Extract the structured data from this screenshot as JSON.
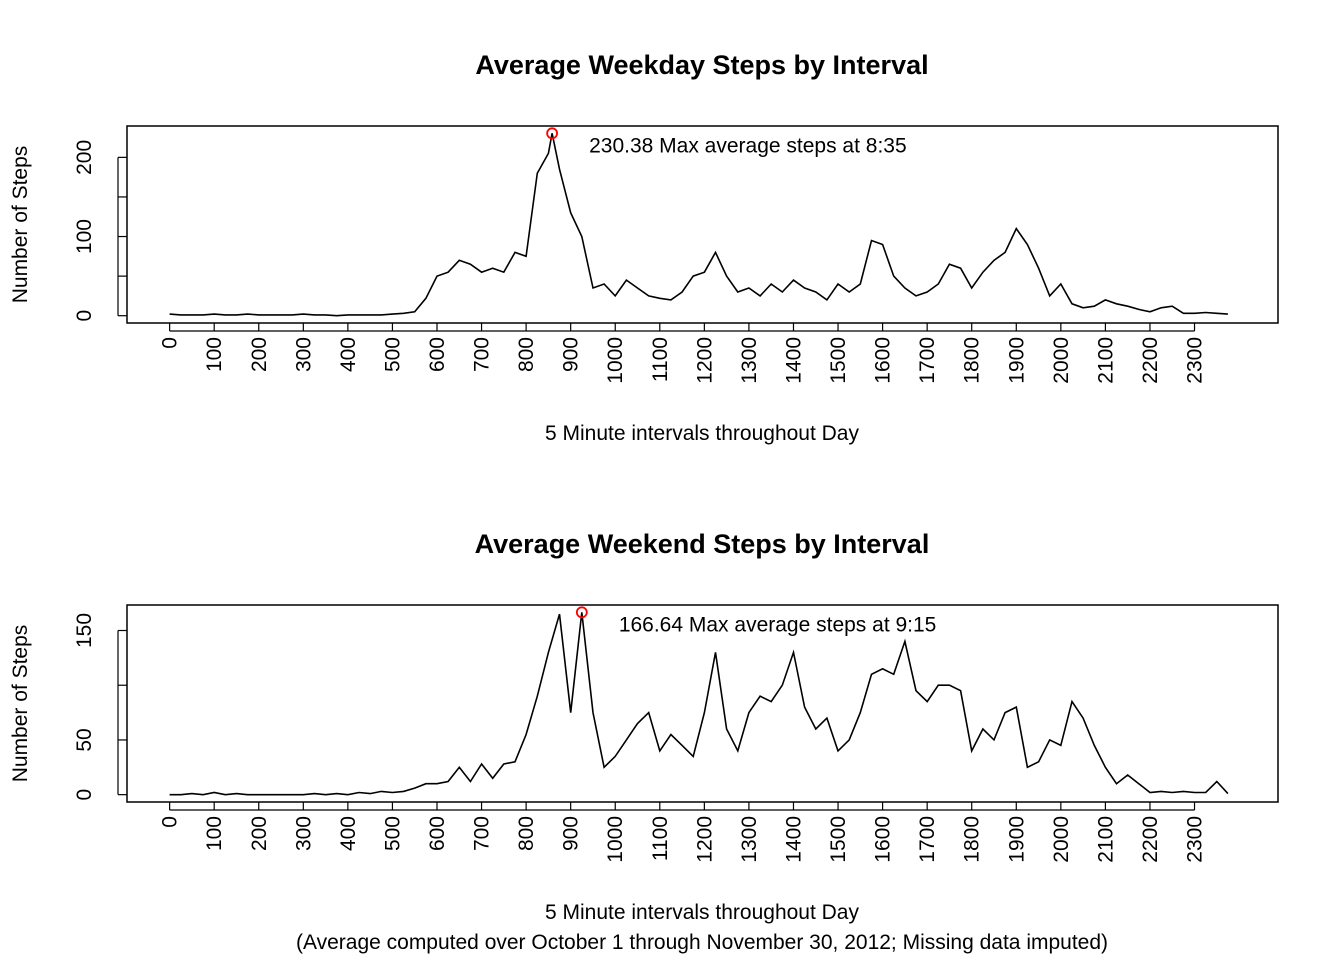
{
  "chart_data": [
    {
      "type": "line",
      "title": "Average Weekday Steps by Interval",
      "xlabel": "5 Minute intervals throughout Day",
      "ylabel": "Number of Steps",
      "color": "#000000",
      "x": [
        0,
        3,
        6,
        9,
        12,
        15,
        18,
        21,
        24,
        27,
        30,
        33,
        36,
        39,
        42,
        45,
        48,
        51,
        54,
        57,
        60,
        63,
        66,
        69,
        72,
        75,
        78,
        81,
        84,
        87,
        90,
        93,
        96,
        99,
        102,
        103,
        105,
        108,
        111,
        114,
        117,
        120,
        123,
        126,
        129,
        132,
        135,
        138,
        141,
        144,
        147,
        150,
        153,
        156,
        159,
        162,
        165,
        168,
        171,
        174,
        177,
        180,
        183,
        186,
        189,
        192,
        195,
        198,
        201,
        204,
        207,
        210,
        213,
        216,
        219,
        222,
        225,
        228,
        231,
        234,
        237,
        240,
        243,
        246,
        249,
        252,
        255,
        258,
        261,
        264,
        267,
        270,
        273,
        276,
        279,
        282,
        285
      ],
      "values": [
        2,
        1,
        1,
        1,
        2,
        1,
        1,
        2,
        1,
        1,
        1,
        1,
        2,
        1,
        1,
        0,
        1,
        1,
        1,
        1,
        2,
        3,
        5,
        22,
        50,
        55,
        70,
        65,
        55,
        60,
        55,
        80,
        75,
        180,
        205,
        230.38,
        185,
        130,
        100,
        35,
        40,
        25,
        45,
        35,
        25,
        22,
        20,
        30,
        50,
        55,
        80,
        50,
        30,
        35,
        25,
        40,
        30,
        45,
        35,
        30,
        20,
        40,
        30,
        40,
        95,
        90,
        50,
        35,
        25,
        30,
        40,
        65,
        60,
        35,
        55,
        70,
        80,
        110,
        90,
        60,
        25,
        40,
        15,
        10,
        12,
        20,
        15,
        12,
        8,
        5,
        10,
        12,
        3,
        3,
        4,
        3,
        2
      ],
      "max": {
        "x": 103,
        "value": 230.38,
        "label": "230.38 Max average steps at 8:35",
        "color": "#ff0000"
      },
      "xlim": [
        -11.48,
        298.48
      ],
      "xticks": [
        {
          "value": 0,
          "label": "0"
        },
        {
          "value": 12,
          "label": "100"
        },
        {
          "value": 24,
          "label": "200"
        },
        {
          "value": 36,
          "label": "300"
        },
        {
          "value": 48,
          "label": "400"
        },
        {
          "value": 60,
          "label": "500"
        },
        {
          "value": 72,
          "label": "600"
        },
        {
          "value": 84,
          "label": "700"
        },
        {
          "value": 96,
          "label": "800"
        },
        {
          "value": 108,
          "label": "900"
        },
        {
          "value": 120,
          "label": "1000"
        },
        {
          "value": 132,
          "label": "1100"
        },
        {
          "value": 144,
          "label": "1200"
        },
        {
          "value": 156,
          "label": "1300"
        },
        {
          "value": 168,
          "label": "1400"
        },
        {
          "value": 180,
          "label": "1500"
        },
        {
          "value": 192,
          "label": "1600"
        },
        {
          "value": 204,
          "label": "1700"
        },
        {
          "value": 216,
          "label": "1800"
        },
        {
          "value": 228,
          "label": "1900"
        },
        {
          "value": 240,
          "label": "2000"
        },
        {
          "value": 252,
          "label": "2100"
        },
        {
          "value": 264,
          "label": "2200"
        },
        {
          "value": 276,
          "label": "2300"
        }
      ],
      "xtick_color": "#0000ff",
      "ylim": [
        -9.2,
        239.6
      ],
      "yticks": [
        0,
        100,
        200
      ],
      "yminorticks": [
        50,
        150
      ]
    },
    {
      "type": "line",
      "title": "Average Weekend Steps by Interval",
      "xlabel": "5 Minute intervals throughout Day",
      "ylabel": "Number of Steps",
      "note": "(Average computed over October 1 through November 30, 2012; Missing data imputed)",
      "color": "#000000",
      "x": [
        0,
        3,
        6,
        9,
        12,
        15,
        18,
        21,
        24,
        27,
        30,
        33,
        36,
        39,
        42,
        45,
        48,
        51,
        54,
        57,
        60,
        63,
        66,
        69,
        72,
        75,
        78,
        81,
        84,
        87,
        90,
        93,
        96,
        99,
        102,
        105,
        108,
        111,
        114,
        117,
        120,
        123,
        126,
        129,
        132,
        135,
        138,
        141,
        144,
        147,
        150,
        153,
        156,
        159,
        162,
        165,
        168,
        171,
        174,
        177,
        180,
        183,
        186,
        189,
        192,
        195,
        198,
        201,
        204,
        207,
        210,
        213,
        216,
        219,
        222,
        225,
        228,
        231,
        234,
        237,
        240,
        243,
        246,
        249,
        252,
        255,
        258,
        261,
        264,
        267,
        270,
        273,
        276,
        279,
        282,
        285
      ],
      "values": [
        0,
        0,
        1,
        0,
        2,
        0,
        1,
        0,
        0,
        0,
        0,
        0,
        0,
        1,
        0,
        1,
        0,
        2,
        1,
        3,
        2,
        3,
        6,
        10,
        10,
        12,
        25,
        12,
        28,
        15,
        28,
        30,
        55,
        90,
        130,
        165,
        75,
        166.64,
        75,
        25,
        35,
        50,
        65,
        75,
        40,
        55,
        45,
        35,
        75,
        130,
        60,
        40,
        75,
        90,
        85,
        100,
        130,
        80,
        60,
        70,
        40,
        50,
        75,
        110,
        115,
        110,
        140,
        95,
        85,
        100,
        100,
        95,
        40,
        60,
        50,
        75,
        80,
        25,
        30,
        50,
        45,
        85,
        70,
        45,
        25,
        10,
        18,
        10,
        2,
        3,
        2,
        3,
        2,
        2,
        12,
        1
      ],
      "max": {
        "x": 111,
        "value": 166.64,
        "label": "166.64 Max average steps at 9:15",
        "color": "#ff0000"
      },
      "xlim": [
        -11.48,
        298.48
      ],
      "xticks": [
        {
          "value": 0,
          "label": "0"
        },
        {
          "value": 12,
          "label": "100"
        },
        {
          "value": 24,
          "label": "200"
        },
        {
          "value": 36,
          "label": "300"
        },
        {
          "value": 48,
          "label": "400"
        },
        {
          "value": 60,
          "label": "500"
        },
        {
          "value": 72,
          "label": "600"
        },
        {
          "value": 84,
          "label": "700"
        },
        {
          "value": 96,
          "label": "800"
        },
        {
          "value": 108,
          "label": "900"
        },
        {
          "value": 120,
          "label": "1000"
        },
        {
          "value": 132,
          "label": "1100"
        },
        {
          "value": 144,
          "label": "1200"
        },
        {
          "value": 156,
          "label": "1300"
        },
        {
          "value": 168,
          "label": "1400"
        },
        {
          "value": 180,
          "label": "1500"
        },
        {
          "value": 192,
          "label": "1600"
        },
        {
          "value": 204,
          "label": "1700"
        },
        {
          "value": 216,
          "label": "1800"
        },
        {
          "value": 228,
          "label": "1900"
        },
        {
          "value": 240,
          "label": "2000"
        },
        {
          "value": 252,
          "label": "2100"
        },
        {
          "value": 264,
          "label": "2200"
        },
        {
          "value": 276,
          "label": "2300"
        }
      ],
      "xtick_color": "#0000ff",
      "ylim": [
        -6.7,
        173.3
      ],
      "yticks": [
        0,
        50,
        150
      ],
      "yminorticks": [
        100
      ]
    }
  ]
}
